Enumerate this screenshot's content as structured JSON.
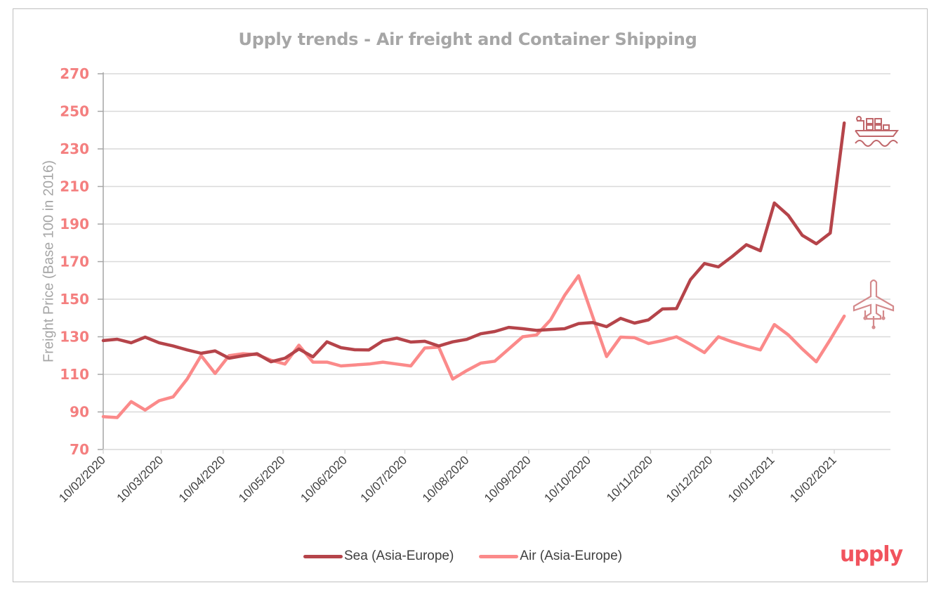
{
  "chart_data": {
    "type": "line",
    "title": "Upply trends - Air freight and Container Shipping",
    "xlabel": "",
    "ylabel": "Freight Price (Base 100 in 2016)",
    "ylim": [
      70,
      270
    ],
    "yticks": [
      70,
      90,
      110,
      130,
      150,
      170,
      190,
      210,
      230,
      250,
      270
    ],
    "xticks": [
      "10/02/2020",
      "10/03/2020",
      "10/04/2020",
      "10/05/2020",
      "10/06/2020",
      "10/07/2020",
      "10/08/2020",
      "10/09/2020",
      "10/10/2020",
      "10/11/2020",
      "10/12/2020",
      "10/01/2021",
      "10/02/2021"
    ],
    "grid": true,
    "legend_position": "bottom",
    "x": [
      "10/02/2020",
      "17/02/2020",
      "24/02/2020",
      "02/03/2020",
      "09/03/2020",
      "16/03/2020",
      "23/03/2020",
      "30/03/2020",
      "06/04/2020",
      "13/04/2020",
      "20/04/2020",
      "27/04/2020",
      "04/05/2020",
      "11/05/2020",
      "18/05/2020",
      "25/05/2020",
      "01/06/2020",
      "08/06/2020",
      "15/06/2020",
      "22/06/2020",
      "29/06/2020",
      "06/07/2020",
      "13/07/2020",
      "20/07/2020",
      "27/07/2020",
      "03/08/2020",
      "10/08/2020",
      "17/08/2020",
      "24/08/2020",
      "31/08/2020",
      "07/09/2020",
      "14/09/2020",
      "21/09/2020",
      "28/09/2020",
      "05/10/2020",
      "12/10/2020",
      "19/10/2020",
      "26/10/2020",
      "02/11/2020",
      "09/11/2020",
      "16/11/2020",
      "23/11/2020",
      "30/11/2020",
      "07/12/2020",
      "14/12/2020",
      "21/12/2020",
      "28/12/2020",
      "04/01/2021",
      "11/01/2021",
      "18/01/2021",
      "25/01/2021",
      "01/02/2021",
      "08/02/2021",
      "15/02/2021"
    ],
    "series": [
      {
        "name": "Sea (Asia-Europe)",
        "color": "#b5444a",
        "icon": "container-ship-icon",
        "values": [
          128,
          128.7,
          126.8,
          129.8,
          126.8,
          125.1,
          123,
          121.2,
          122.5,
          118.6,
          119.9,
          121,
          116.7,
          118.6,
          123.5,
          119.3,
          127.3,
          124.2,
          123.1,
          123,
          127.8,
          129.3,
          127.2,
          127.6,
          125.1,
          127.3,
          128.6,
          131.6,
          132.8,
          135,
          134.3,
          133.4,
          133.9,
          134.3,
          137,
          137.6,
          135.4,
          139.8,
          137.3,
          139,
          144.8,
          145,
          160.4,
          169,
          167.2,
          172.8,
          179,
          175.8,
          201.2,
          194.6,
          184,
          179.5,
          185.2,
          243.8
        ]
      },
      {
        "name": "Air (Asia-Europe)",
        "color": "#fb8a8a",
        "icon": "airplane-icon",
        "values": [
          87.5,
          87,
          95.5,
          91,
          96,
          98,
          107.5,
          120,
          110.5,
          120,
          121,
          120.5,
          117.5,
          115.5,
          125.5,
          116.5,
          116.5,
          114.5,
          115,
          115.5,
          116.5,
          115.5,
          114.5,
          124,
          124.5,
          107.5,
          112,
          116,
          117,
          123.5,
          130,
          131,
          139,
          152,
          162.5,
          141,
          119.5,
          129.8,
          129.5,
          126.4,
          128,
          130,
          126,
          121.6,
          130,
          127.3,
          125,
          123,
          136.5,
          131,
          123.5,
          116.7,
          128.5,
          141
        ]
      }
    ],
    "colors": {
      "tick_label_y": "#f47f7f",
      "tick_label_x": "#404040",
      "title": "#a6a6a6",
      "grid": "#d9d9d9",
      "icon": "#c0676b",
      "logo": "#f1535d"
    }
  },
  "logo": "upply"
}
